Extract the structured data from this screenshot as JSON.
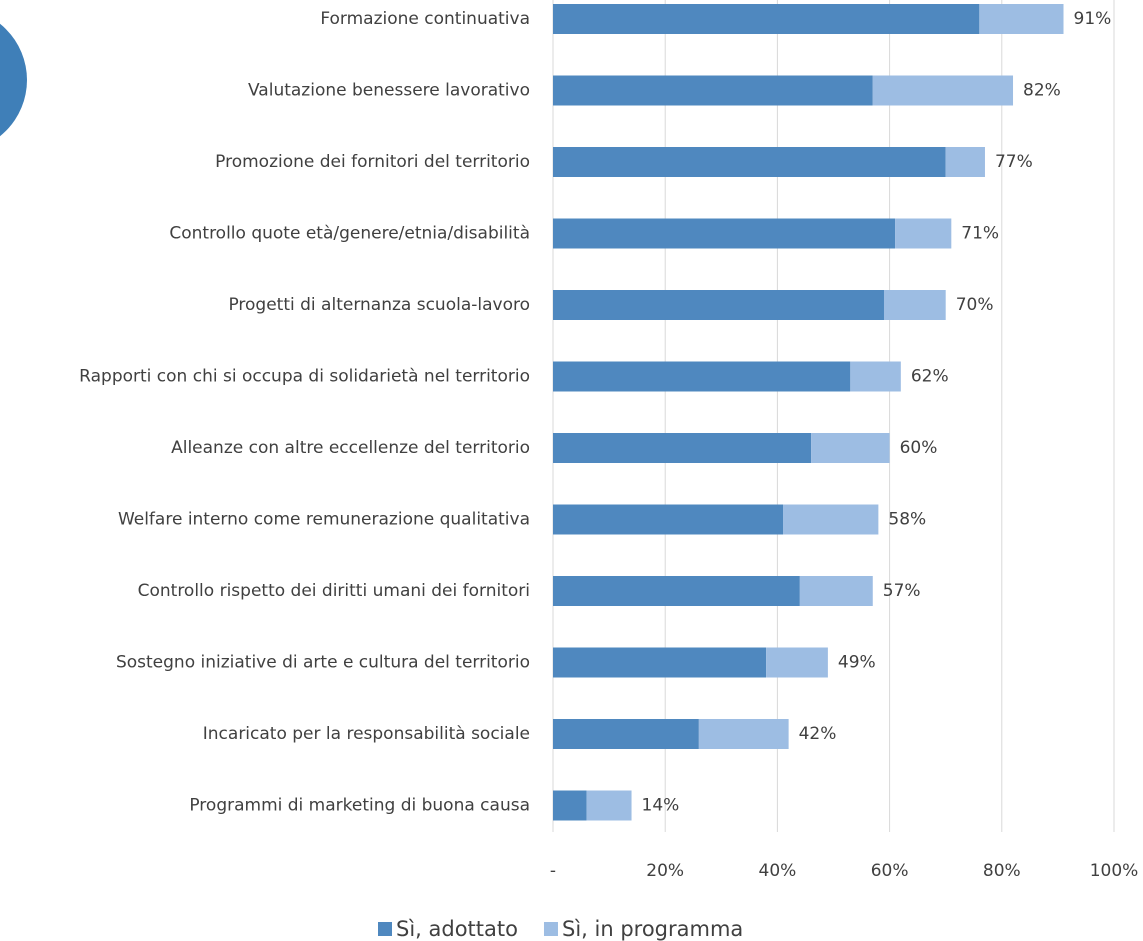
{
  "chart_data": {
    "type": "stacked-bar-horizontal",
    "categories": [
      "Formazione continuativa",
      "Valutazione benessere lavorativo",
      "Promozione dei fornitori del territorio",
      "Controllo quote età/genere/etnia/disabilità",
      "Progetti di alternanza scuola-lavoro",
      "Rapporti con chi si occupa di solidarietà nel territorio",
      "Alleanze con altre eccellenze del territorio",
      "Welfare interno come remunerazione qualitativa",
      "Controllo rispetto dei diritti umani dei fornitori",
      "Sostegno iniziative di arte e cultura del territorio",
      "Incaricato per la responsabilità sociale",
      "Programmi di marketing di buona causa"
    ],
    "series": [
      {
        "name": "Sì, adottato",
        "color": "#4f88bf",
        "values": [
          76,
          57,
          70,
          61,
          59,
          53,
          46,
          41,
          44,
          38,
          26,
          6
        ]
      },
      {
        "name": "Sì, in programma",
        "color": "#9dbde3",
        "values": [
          15,
          25,
          7,
          10,
          11,
          9,
          14,
          17,
          13,
          11,
          16,
          8
        ]
      }
    ],
    "totals": [
      91,
      82,
      77,
      71,
      70,
      62,
      60,
      58,
      57,
      49,
      42,
      14
    ],
    "total_labels": [
      "91%",
      "82%",
      "77%",
      "71%",
      "70%",
      "62%",
      "60%",
      "58%",
      "57%",
      "49%",
      "42%",
      "14%"
    ],
    "xlim": [
      0,
      100
    ],
    "xticks": [
      {
        "value": 0,
        "label": "-"
      },
      {
        "value": 20,
        "label": "20%"
      },
      {
        "value": 40,
        "label": "40%"
      },
      {
        "value": 60,
        "label": "60%"
      },
      {
        "value": 80,
        "label": "80%"
      },
      {
        "value": 100,
        "label": "100%"
      }
    ],
    "grid": true,
    "legend": "bottom"
  }
}
